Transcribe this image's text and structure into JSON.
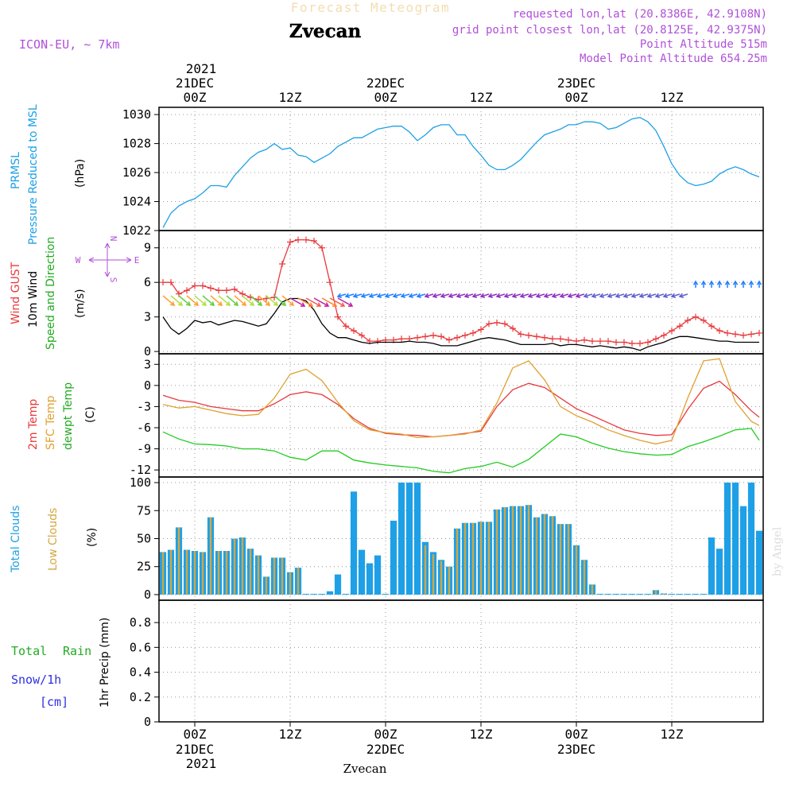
{
  "header": {
    "title_main": "Forecast Meteogram",
    "location": "Zvecan",
    "model": "ICON-EU, ~ 7km",
    "requested": "requested lon,lat (20.8386E, 42.9108N)",
    "grid_point": "grid point closest lon,lat (20.8125E, 42.9375N)",
    "point_altitude": "Point Altitude 515m",
    "model_altitude": "Model Point Altitude 654.25m"
  },
  "footer": {
    "location": "Zvecan",
    "watermark": "by Angel"
  },
  "colors": {
    "pressure": "#1ea0e6",
    "gust": "#e8393c",
    "wind": "#000000",
    "temp2m": "#e8393c",
    "sfc": "#e0a030",
    "dewpt": "#22cc22",
    "total_cloud": "#1ea0e6",
    "low_cloud": "#d4a640",
    "purple": "#b050d8",
    "green": "#22aa22",
    "blue": "#3030e0"
  },
  "time_axis": {
    "top": {
      "ticks": [
        "00Z",
        "12Z",
        "00Z",
        "12Z",
        "00Z",
        "12Z"
      ],
      "dates": [
        "21DEC",
        "22DEC",
        "23DEC"
      ],
      "year": "2021"
    },
    "bottom": {
      "ticks": [
        "00Z",
        "12Z",
        "00Z",
        "12Z",
        "00Z",
        "12Z"
      ],
      "dates": [
        "21DEC",
        "22DEC",
        "23DEC"
      ],
      "year": "2021"
    }
  },
  "panels": {
    "pressure": {
      "label_a": "PRMSL",
      "label_b": "Pressure Reduced to MSL",
      "unit": "(hPa)"
    },
    "wind": {
      "label_gust": "Wind GUST",
      "label_wind": "10m Wind",
      "label_dir": "Speed and Direction",
      "unit": "(m/s)",
      "compass_w": "W",
      "compass_e": "E",
      "compass_n": "N",
      "compass_s": "S"
    },
    "temp": {
      "label_2m": "2m Temp",
      "label_sfc": "SFC Temp",
      "label_dew": "dewpt Temp",
      "unit": "(C)"
    },
    "cloud": {
      "label_total": "Total Clouds",
      "label_low": "Low Clouds",
      "unit": "(%)"
    },
    "precip": {
      "label_total": "Total",
      "label_rain": "Rain",
      "label_snow": "Snow/1h",
      "label_cm": "[cm]",
      "ylabel": "1hr Precip (mm)"
    }
  },
  "chart_data": [
    {
      "type": "line",
      "name": "pressure",
      "ylim": [
        1022,
        1030.5
      ],
      "yticks": [
        1022,
        1024,
        1026,
        1028,
        1030
      ],
      "x_hours": [
        -4,
        -3,
        -2,
        -1,
        0,
        1,
        2,
        3,
        4,
        5,
        6,
        7,
        8,
        9,
        10,
        11,
        12,
        13,
        14,
        15,
        16,
        17,
        18,
        19,
        20,
        21,
        22,
        23,
        24,
        25,
        26,
        27,
        28,
        29,
        30,
        31,
        32,
        33,
        34,
        35,
        36,
        37,
        38,
        39,
        40,
        41,
        42,
        43,
        44,
        45,
        46,
        47,
        48,
        49,
        50,
        51,
        52,
        53,
        54,
        55,
        56,
        57,
        58,
        59,
        60,
        61,
        62,
        63,
        64,
        65,
        66,
        67,
        68,
        69,
        70,
        71
      ],
      "series": [
        {
          "name": "PRMSL",
          "values": [
            1022.2,
            1023.2,
            1023.7,
            1024.0,
            1024.2,
            1024.6,
            1025.1,
            1025.1,
            1025.0,
            1025.8,
            1026.4,
            1027.0,
            1027.4,
            1027.6,
            1028.0,
            1027.6,
            1027.7,
            1027.2,
            1027.1,
            1026.7,
            1027.0,
            1027.3,
            1027.8,
            1028.1,
            1028.4,
            1028.4,
            1028.7,
            1029.0,
            1029.1,
            1029.2,
            1029.2,
            1028.8,
            1028.2,
            1028.6,
            1029.1,
            1029.3,
            1029.3,
            1028.6,
            1028.6,
            1027.8,
            1027.2,
            1026.5,
            1026.2,
            1026.2,
            1026.5,
            1026.9,
            1027.5,
            1028.1,
            1028.6,
            1028.8,
            1029.0,
            1029.3,
            1029.3,
            1029.5,
            1029.5,
            1029.4,
            1029.0,
            1029.1,
            1029.4,
            1029.7,
            1029.8,
            1029.5,
            1028.9,
            1027.8,
            1026.6,
            1025.8,
            1025.3,
            1025.1,
            1025.2,
            1025.4,
            1025.9,
            1026.2,
            1026.4,
            1026.2,
            1025.9,
            1025.7
          ]
        }
      ]
    },
    {
      "type": "line",
      "name": "wind",
      "ylim": [
        -0.2,
        10.5
      ],
      "yticks": [
        0,
        3,
        6,
        9
      ],
      "x_hours": [
        -4,
        -3,
        -2,
        -1,
        0,
        1,
        2,
        3,
        4,
        5,
        6,
        7,
        8,
        9,
        10,
        11,
        12,
        13,
        14,
        15,
        16,
        17,
        18,
        19,
        20,
        21,
        22,
        23,
        24,
        25,
        26,
        27,
        28,
        29,
        30,
        31,
        32,
        33,
        34,
        35,
        36,
        37,
        38,
        39,
        40,
        41,
        42,
        43,
        44,
        45,
        46,
        47,
        48,
        49,
        50,
        51,
        52,
        53,
        54,
        55,
        56,
        57,
        58,
        59,
        60,
        61,
        62,
        63,
        64,
        65,
        66,
        67,
        68,
        69,
        70,
        71
      ],
      "series": [
        {
          "name": "Wind GUST",
          "values": [
            6.0,
            6.0,
            5.0,
            5.3,
            5.7,
            5.7,
            5.5,
            5.3,
            5.3,
            5.4,
            5.0,
            4.7,
            4.5,
            4.6,
            4.7,
            7.6,
            9.5,
            9.7,
            9.7,
            9.6,
            9.0,
            6.0,
            3.0,
            2.2,
            1.8,
            1.4,
            0.9,
            0.9,
            1.0,
            1.0,
            1.1,
            1.1,
            1.2,
            1.3,
            1.4,
            1.3,
            1.0,
            1.2,
            1.4,
            1.6,
            1.9,
            2.4,
            2.5,
            2.4,
            2.0,
            1.5,
            1.4,
            1.3,
            1.2,
            1.1,
            1.1,
            1.0,
            0.9,
            1.0,
            0.9,
            0.9,
            0.9,
            0.8,
            0.8,
            0.7,
            0.7,
            0.8,
            1.1,
            1.4,
            1.8,
            2.2,
            2.7,
            3.0,
            2.7,
            2.2,
            1.8,
            1.6,
            1.5,
            1.4,
            1.5,
            1.6
          ]
        },
        {
          "name": "10m Wind",
          "values": [
            3.0,
            2.0,
            1.5,
            2.0,
            2.7,
            2.5,
            2.6,
            2.3,
            2.5,
            2.7,
            2.6,
            2.4,
            2.2,
            2.4,
            3.3,
            4.3,
            4.6,
            4.6,
            4.4,
            3.6,
            2.4,
            1.6,
            1.2,
            1.2,
            1.0,
            0.8,
            0.7,
            0.8,
            0.8,
            0.8,
            0.8,
            0.9,
            0.8,
            0.8,
            0.7,
            0.5,
            0.5,
            0.5,
            0.7,
            0.9,
            1.1,
            1.2,
            1.1,
            1.0,
            0.8,
            0.6,
            0.6,
            0.6,
            0.6,
            0.7,
            0.5,
            0.6,
            0.6,
            0.5,
            0.4,
            0.5,
            0.4,
            0.3,
            0.4,
            0.3,
            0.1,
            0.4,
            0.6,
            0.8,
            1.1,
            1.3,
            1.3,
            1.2,
            1.1,
            1.0,
            0.9,
            0.9,
            0.8,
            0.8,
            0.8,
            0.8
          ]
        }
      ]
    },
    {
      "type": "line",
      "name": "temperature",
      "ylim": [
        -13,
        4.5
      ],
      "yticks": [
        -12,
        -9,
        -6,
        -3,
        0,
        3
      ],
      "x_hours": [
        -4,
        -2,
        0,
        2,
        4,
        6,
        8,
        10,
        12,
        14,
        16,
        18,
        20,
        22,
        24,
        26,
        28,
        30,
        32,
        34,
        36,
        38,
        40,
        42,
        44,
        46,
        48,
        50,
        52,
        54,
        56,
        58,
        60,
        62,
        64,
        66,
        68,
        70,
        71
      ],
      "series": [
        {
          "name": "2m Temp",
          "values": [
            -1.4,
            -2.1,
            -2.4,
            -3.0,
            -3.3,
            -3.6,
            -3.6,
            -2.6,
            -1.3,
            -0.9,
            -1.3,
            -2.7,
            -4.7,
            -6.1,
            -6.8,
            -7.0,
            -7.1,
            -7.3,
            -7.1,
            -6.8,
            -6.5,
            -3.0,
            -0.6,
            0.3,
            -0.3,
            -1.8,
            -3.3,
            -4.3,
            -5.3,
            -6.3,
            -6.8,
            -7.1,
            -7.0,
            -3.4,
            -0.4,
            0.6,
            -1.3,
            -3.6,
            -4.5
          ]
        },
        {
          "name": "SFC Temp",
          "values": [
            -2.7,
            -3.2,
            -3.0,
            -3.5,
            -4.0,
            -4.3,
            -4.1,
            -1.8,
            1.6,
            2.3,
            0.7,
            -2.4,
            -5.0,
            -6.3,
            -6.7,
            -6.9,
            -7.4,
            -7.3,
            -7.1,
            -6.9,
            -6.3,
            -2.5,
            2.5,
            3.5,
            0.8,
            -3.0,
            -4.3,
            -5.2,
            -6.3,
            -7.1,
            -7.8,
            -8.3,
            -7.8,
            -1.8,
            3.5,
            3.8,
            -2.3,
            -5.1,
            -5.7
          ]
        },
        {
          "name": "dewpt Temp",
          "values": [
            -6.6,
            -7.6,
            -8.3,
            -8.4,
            -8.6,
            -9.0,
            -9.0,
            -9.3,
            -10.2,
            -10.6,
            -9.3,
            -9.3,
            -10.6,
            -11.0,
            -11.3,
            -11.5,
            -11.7,
            -12.2,
            -12.4,
            -11.8,
            -11.5,
            -10.9,
            -11.6,
            -10.5,
            -8.7,
            -6.9,
            -7.3,
            -8.2,
            -8.9,
            -9.4,
            -9.7,
            -9.9,
            -9.8,
            -8.7,
            -8.0,
            -7.2,
            -6.3,
            -6.1,
            -7.8
          ]
        }
      ]
    },
    {
      "type": "bar",
      "name": "clouds",
      "ylim": [
        -5,
        105
      ],
      "yticks": [
        0,
        25,
        50,
        75,
        100
      ],
      "x_hours": [
        -4,
        -3,
        -2,
        -1,
        0,
        1,
        2,
        3,
        4,
        5,
        6,
        7,
        8,
        9,
        10,
        11,
        12,
        13,
        14,
        15,
        16,
        17,
        18,
        19,
        20,
        21,
        22,
        23,
        24,
        25,
        26,
        27,
        28,
        29,
        30,
        31,
        32,
        33,
        34,
        35,
        36,
        37,
        38,
        39,
        40,
        41,
        42,
        43,
        44,
        45,
        46,
        47,
        48,
        49,
        50,
        51,
        52,
        53,
        54,
        55,
        56,
        57,
        58,
        59,
        60,
        61,
        62,
        63,
        64,
        65,
        66,
        67,
        68,
        69,
        70,
        71
      ],
      "series": [
        {
          "name": "Total Clouds",
          "values": [
            38,
            40,
            60,
            40,
            39,
            38,
            69,
            39,
            39,
            50,
            51,
            41,
            35,
            16,
            33,
            33,
            20,
            24,
            0,
            0,
            0,
            3,
            18,
            0,
            92,
            40,
            28,
            35,
            0,
            66,
            100,
            100,
            100,
            47,
            38,
            31,
            25,
            59,
            64,
            64,
            65,
            65,
            76,
            78,
            79,
            79,
            80,
            69,
            72,
            70,
            63,
            63,
            44,
            31,
            9,
            0,
            0,
            0,
            0,
            0,
            0,
            0,
            4,
            1,
            0,
            0,
            0,
            0,
            0,
            51,
            41,
            100,
            100,
            79,
            100,
            57
          ]
        },
        {
          "name": "Low Clouds",
          "values": [
            38,
            40,
            60,
            40,
            39,
            38,
            69,
            39,
            39,
            50,
            51,
            41,
            35,
            16,
            33,
            33,
            20,
            24,
            0,
            0,
            0,
            0,
            0,
            0,
            0,
            0,
            0,
            0,
            0,
            0,
            0,
            0,
            0,
            44,
            36,
            30,
            25,
            59,
            64,
            64,
            65,
            65,
            76,
            78,
            79,
            79,
            80,
            69,
            72,
            70,
            63,
            63,
            44,
            31,
            9,
            0,
            0,
            0,
            0,
            0,
            0,
            0,
            4,
            1,
            0,
            0,
            0,
            0,
            0,
            0,
            0,
            0,
            0,
            0,
            0,
            0
          ]
        }
      ]
    },
    {
      "type": "bar",
      "name": "precip",
      "ylim": [
        0,
        0.98
      ],
      "yticks": [
        0,
        0.2,
        0.4,
        0.6,
        0.8
      ],
      "series": [
        {
          "name": "1hr Precip",
          "values": []
        }
      ]
    }
  ]
}
